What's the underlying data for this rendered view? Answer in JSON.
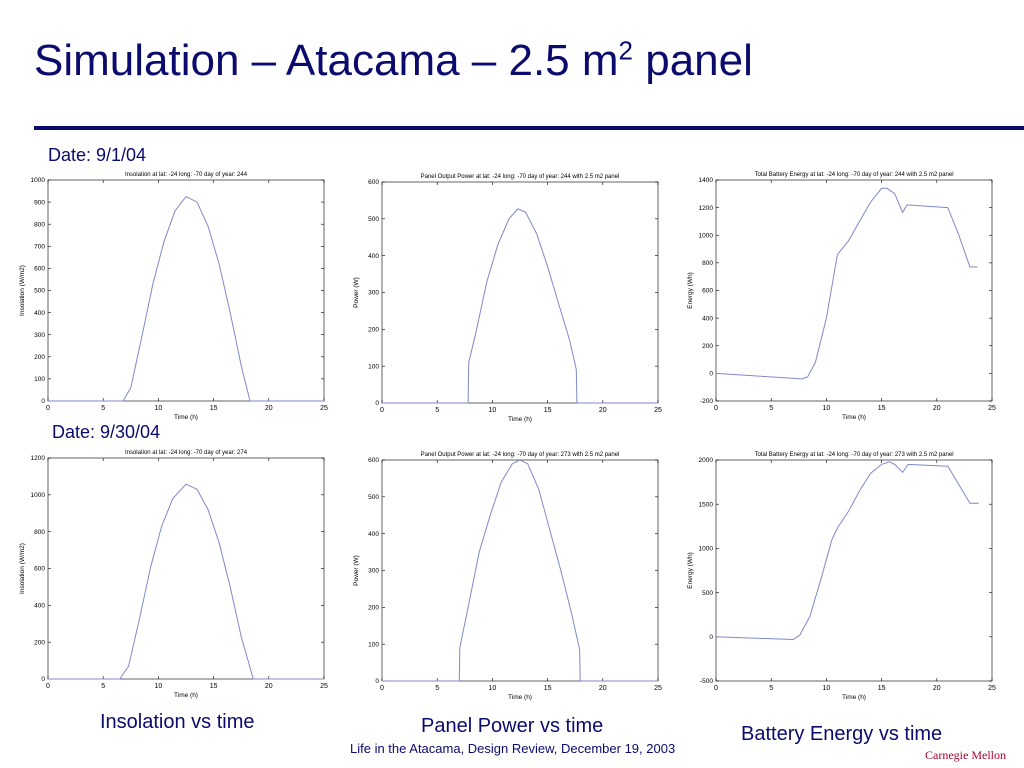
{
  "slide": {
    "title_prefix": "Simulation – Atacama – 2.5 m",
    "title_sup": "2",
    "title_suffix": " panel",
    "date1": "Date: 9/1/04",
    "date2": "Date: 9/30/04",
    "caption_insolation": "Insolation vs time",
    "caption_power": "Panel Power vs time",
    "caption_battery": "Battery Energy vs time",
    "footer": "Life in the Atacama, Design Review, December 19, 2003",
    "logo": "Carnegie Mellon"
  },
  "colors": {
    "title": "#0b0b6e",
    "series": "#8088c8",
    "logo": "#b0002a"
  },
  "chart_data": [
    {
      "type": "line",
      "title": "Insolation at lat: -24 long: -70 day of year: 244",
      "xlabel": "Time (h)",
      "ylabel": "Insolation (W/m2)",
      "xlim": [
        0,
        25
      ],
      "ylim": [
        0,
        1000
      ],
      "xticks": [
        0,
        5,
        10,
        15,
        20,
        25
      ],
      "yticks": [
        0,
        100,
        200,
        300,
        400,
        500,
        600,
        700,
        800,
        900,
        1000
      ],
      "x": [
        0,
        6.8,
        7.5,
        8.5,
        9.5,
        10.5,
        11.5,
        12.5,
        13.5,
        14.5,
        15.5,
        16.5,
        17.5,
        18.3,
        25
      ],
      "y": [
        0,
        0,
        60,
        290,
        530,
        720,
        860,
        925,
        900,
        790,
        620,
        400,
        160,
        0,
        0
      ]
    },
    {
      "type": "line",
      "title": "Panel Output Power at lat: -24 long: -70 day of year: 244 with 2.5 m2 panel",
      "xlabel": "Time (h)",
      "ylabel": "Power (W)",
      "xlim": [
        0,
        25
      ],
      "ylim": [
        0,
        600
      ],
      "xticks": [
        0,
        5,
        10,
        15,
        20,
        25
      ],
      "yticks": [
        0,
        100,
        200,
        300,
        400,
        500,
        600
      ],
      "x": [
        0,
        7.8,
        7.85,
        8.5,
        9.5,
        10.5,
        11.5,
        12.3,
        13,
        14,
        15,
        16,
        17,
        17.6,
        17.65,
        25
      ],
      "y": [
        0,
        0,
        110,
        190,
        330,
        430,
        500,
        527,
        518,
        460,
        370,
        270,
        170,
        90,
        0,
        0
      ]
    },
    {
      "type": "line",
      "title": "Total Battery Energy at lat: -24 long: -70 day of year: 244 with 2.5 m2 panel",
      "xlabel": "Time (h)",
      "ylabel": "Energy (Wh)",
      "xlim": [
        0,
        25
      ],
      "ylim": [
        -200,
        1400
      ],
      "xticks": [
        0,
        5,
        10,
        15,
        20,
        25
      ],
      "yticks": [
        -200,
        0,
        200,
        400,
        600,
        800,
        1000,
        1200,
        1400
      ],
      "x": [
        0,
        7.8,
        8.3,
        9,
        10,
        11,
        12,
        13,
        14,
        15,
        15.5,
        16.2,
        16.9,
        17.3,
        21,
        22,
        23,
        23.7
      ],
      "y": [
        0,
        -40,
        -25,
        80,
        400,
        860,
        960,
        1100,
        1240,
        1340,
        1340,
        1300,
        1165,
        1220,
        1200,
        1000,
        770,
        770
      ]
    },
    {
      "type": "line",
      "title": "Insolation at lat: -24 long: -70 day of year: 274",
      "xlabel": "Time (h)",
      "ylabel": "Insolation (W/m2)",
      "xlim": [
        0,
        25
      ],
      "ylim": [
        0,
        1200
      ],
      "xticks": [
        0,
        5,
        10,
        15,
        20,
        25
      ],
      "yticks": [
        0,
        200,
        400,
        600,
        800,
        1000,
        1200
      ],
      "x": [
        0,
        6.5,
        7.3,
        8.3,
        9.3,
        10.3,
        11.3,
        12.5,
        13.5,
        14.5,
        15.5,
        16.5,
        17.5,
        18.6,
        25
      ],
      "y": [
        0,
        0,
        70,
        330,
        610,
        830,
        980,
        1058,
        1030,
        920,
        740,
        500,
        230,
        0,
        0
      ]
    },
    {
      "type": "line",
      "title": "Panel Output Power at lat: -24 long: -70 day of year: 273 with 2.5 m2 panel",
      "xlabel": "Time (h)",
      "ylabel": "Power (W)",
      "xlim": [
        0,
        25
      ],
      "ylim": [
        0,
        600
      ],
      "xticks": [
        0,
        5,
        10,
        15,
        20,
        25
      ],
      "yticks": [
        0,
        100,
        200,
        300,
        400,
        500,
        600
      ],
      "x": [
        0,
        7,
        7.05,
        7.8,
        8.8,
        9.8,
        10.8,
        11.8,
        12.5,
        13.2,
        14.2,
        15.2,
        16.2,
        17.2,
        17.9,
        17.95,
        25
      ],
      "y": [
        0,
        0,
        90,
        200,
        350,
        450,
        540,
        590,
        600,
        590,
        520,
        410,
        300,
        180,
        85,
        0,
        0
      ]
    },
    {
      "type": "line",
      "title": "Total Battery Energy at lat: -24 long: -70 day of year: 273 with 2.5 m2 panel",
      "xlabel": "Time (h)",
      "ylabel": "Energy (Wh)",
      "xlim": [
        0,
        25
      ],
      "ylim": [
        -500,
        2000
      ],
      "xticks": [
        0,
        5,
        10,
        15,
        20,
        25
      ],
      "yticks": [
        -500,
        0,
        500,
        1000,
        1500,
        2000
      ],
      "x": [
        0,
        7,
        7.6,
        8.5,
        9.5,
        10.5,
        11,
        12,
        13,
        14,
        15,
        15.7,
        16.2,
        16.9,
        17.4,
        21,
        22,
        23,
        23.8
      ],
      "y": [
        0,
        -30,
        20,
        230,
        650,
        1100,
        1230,
        1420,
        1650,
        1850,
        1950,
        1980,
        1950,
        1860,
        1950,
        1930,
        1720,
        1510,
        1510
      ]
    }
  ]
}
